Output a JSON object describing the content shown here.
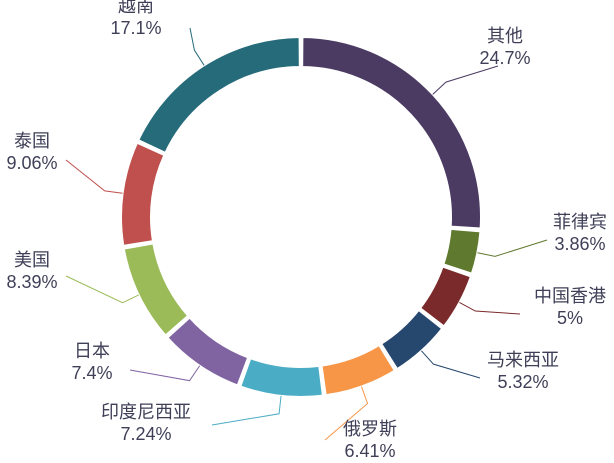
{
  "chart_data": {
    "type": "pie",
    "variant": "donut",
    "legend": "none",
    "slices": [
      {
        "name": "其他",
        "value": 24.7,
        "label": "24.7%",
        "color": "#4b3b63"
      },
      {
        "name": "菲律宾",
        "value": 3.86,
        "label": "3.86%",
        "color": "#5f7a2f"
      },
      {
        "name": "中国香港",
        "value": 5.0,
        "label": "5%",
        "color": "#7a2a2a"
      },
      {
        "name": "马来西亚",
        "value": 5.32,
        "label": "5.32%",
        "color": "#26476e"
      },
      {
        "name": "俄罗斯",
        "value": 6.41,
        "label": "6.41%",
        "color": "#f79646"
      },
      {
        "name": "印度尼西亚",
        "value": 7.24,
        "label": "7.24%",
        "color": "#4bacc6"
      },
      {
        "name": "日本",
        "value": 7.4,
        "label": "7.4%",
        "color": "#8064a2"
      },
      {
        "name": "美国",
        "value": 8.39,
        "label": "8.39%",
        "color": "#9bbb59"
      },
      {
        "name": "泰国",
        "value": 9.06,
        "label": "9.06%",
        "color": "#c0504d"
      },
      {
        "name": "越南",
        "value": 17.1,
        "label": "17.1%",
        "color": "#4f81bd"
      }
    ]
  }
}
